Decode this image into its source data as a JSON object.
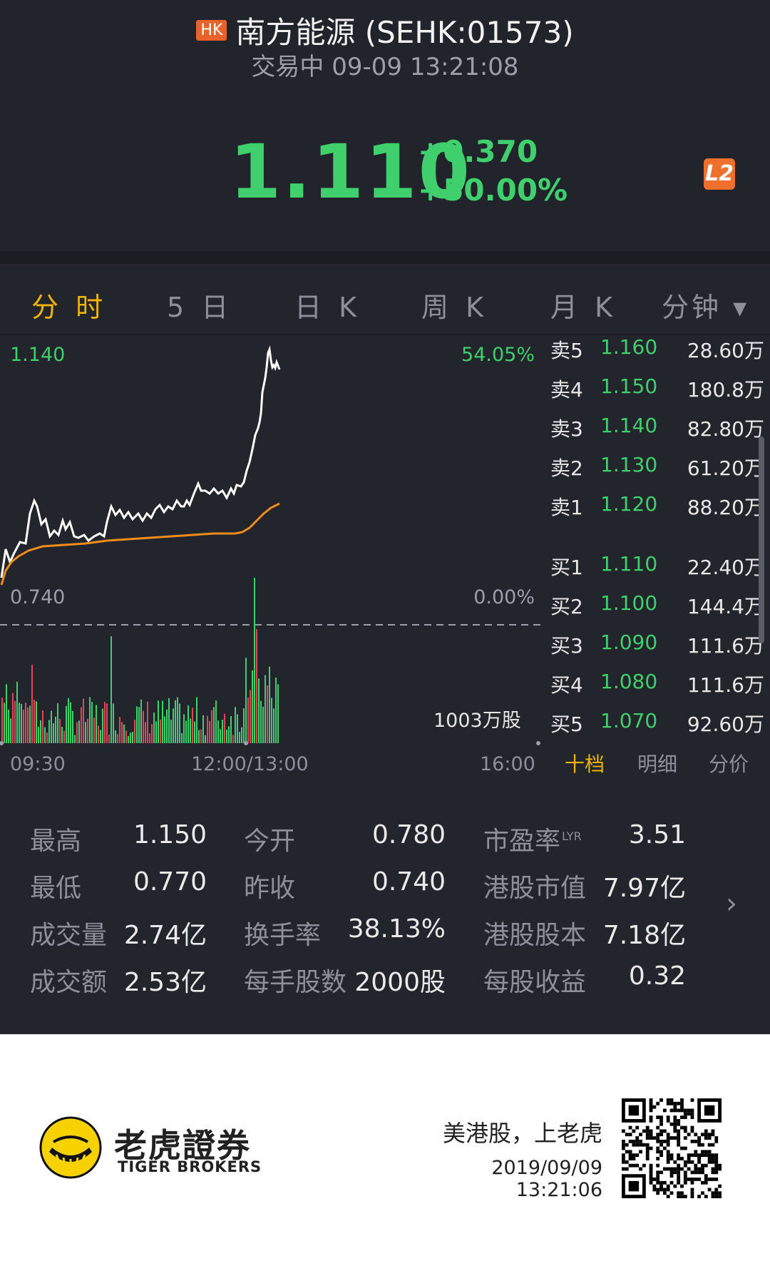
{
  "header": {
    "market_badge": "HK",
    "title": "南方能源 (SEHK:01573)",
    "status": "交易中 09-09 13:21:08",
    "price": "1.110",
    "change": "+0.370",
    "change_pct": "+50.00%",
    "level_badge": "L2"
  },
  "tabs": [
    "分 时",
    "5 日",
    "日 K",
    "周 K",
    "月 K",
    "分钟 ▾"
  ],
  "chart": {
    "top_price": "1.140",
    "top_pct": "54.05%",
    "prev_close_price": "0.740",
    "prev_close_pct": "0.00%",
    "volume_label": "1003万股",
    "times": [
      "09:30",
      "12:00/13:00",
      "16:00"
    ],
    "colors": {
      "price_line": "#ffffff",
      "avg_line": "#f08c1a",
      "up": "#3fcf6d",
      "down": "#e0455a",
      "dash": "#9c9fa8"
    }
  },
  "orderbook": {
    "asks": [
      {
        "label": "卖5",
        "price": "1.160",
        "volume": "28.60万"
      },
      {
        "label": "卖4",
        "price": "1.150",
        "volume": "180.8万"
      },
      {
        "label": "卖3",
        "price": "1.140",
        "volume": "82.80万"
      },
      {
        "label": "卖2",
        "price": "1.130",
        "volume": "61.20万"
      },
      {
        "label": "卖1",
        "price": "1.120",
        "volume": "88.20万"
      }
    ],
    "bids": [
      {
        "label": "买1",
        "price": "1.110",
        "volume": "22.40万"
      },
      {
        "label": "买2",
        "price": "1.100",
        "volume": "144.4万"
      },
      {
        "label": "买3",
        "price": "1.090",
        "volume": "111.6万"
      },
      {
        "label": "买4",
        "price": "1.080",
        "volume": "111.6万"
      },
      {
        "label": "买5",
        "price": "1.070",
        "volume": "92.60万"
      }
    ],
    "tabs": [
      "十档",
      "明细",
      "分价"
    ]
  },
  "stats": {
    "high_label": "最高",
    "high": "1.150",
    "low_label": "最低",
    "low": "0.770",
    "volume_label": "成交量",
    "volume": "2.74亿",
    "turnover_label": "成交额",
    "turnover": "2.53亿",
    "open_label": "今开",
    "open": "0.780",
    "prev_close_label": "昨收",
    "prev_close": "0.740",
    "turnover_rate_label": "换手率",
    "turnover_rate": "38.13%",
    "lot_size_label": "每手股数",
    "lot_size": "2000股",
    "pe_label": "市盈率",
    "pe_sup": "LYR",
    "pe": "3.51",
    "market_cap_label": "港股市值",
    "market_cap": "7.97亿",
    "share_capital_label": "港股股本",
    "share_capital": "7.18亿",
    "eps_label": "每股收益",
    "eps": "0.32"
  },
  "footer": {
    "brand_cn": "老虎證券",
    "brand_en": "TIGER BROKERS",
    "slogan": "美港股，上老虎",
    "timestamp": "2019/09/09 13:21:06"
  }
}
